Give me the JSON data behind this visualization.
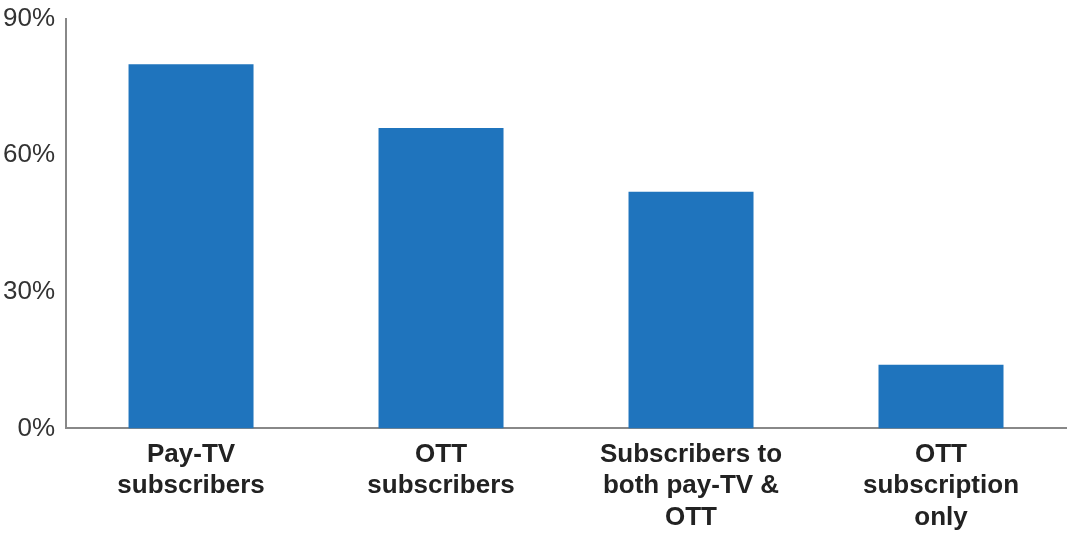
{
  "chart_data": {
    "type": "bar",
    "categories": [
      "Pay-TV subscribers",
      "OTT subscribers",
      "Subscribers to both pay-TV & OTT",
      "OTT subscription only"
    ],
    "values": [
      80,
      66,
      52,
      14
    ],
    "color": "#1f74bd",
    "ylim": [
      0,
      90
    ],
    "yticks": [
      {
        "value": 0,
        "label": "0%"
      },
      {
        "value": 30,
        "label": "30%"
      },
      {
        "value": 60,
        "label": "60%"
      },
      {
        "value": 90,
        "label": "90%"
      }
    ],
    "grid": false,
    "legend": false
  }
}
